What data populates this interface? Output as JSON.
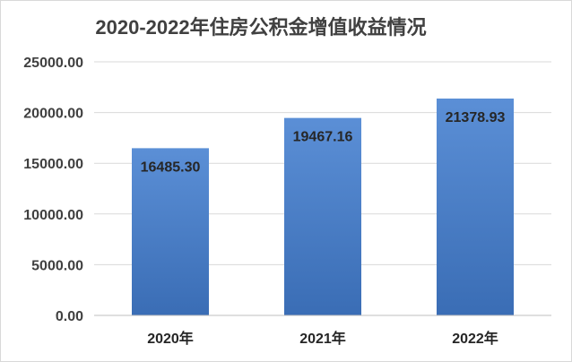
{
  "chart_data": {
    "type": "bar",
    "title": "2020-2022年住房公积金增值收益情况",
    "categories": [
      "2020年",
      "2021年",
      "2022年"
    ],
    "values": [
      16485.3,
      19467.16,
      21378.93
    ],
    "value_labels": [
      "16485.30",
      "19467.16",
      "21378.93"
    ],
    "xlabel": "",
    "ylabel": "",
    "ylim": [
      0,
      25000
    ],
    "yticks": [
      0,
      5000,
      10000,
      15000,
      20000,
      25000
    ],
    "ytick_labels": [
      "0.00",
      "5000.00",
      "10000.00",
      "15000.00",
      "20000.00",
      "25000.00"
    ],
    "grid": true,
    "legend": "none",
    "bar_color_top": "#5b8fd6",
    "bar_color_bottom": "#3a6db5",
    "grid_color": "#d9d9d9"
  }
}
